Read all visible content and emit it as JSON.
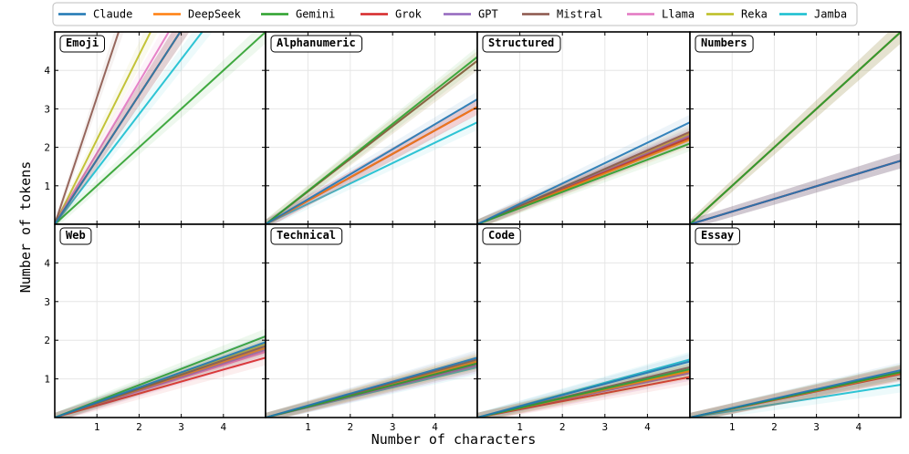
{
  "chart_data": {
    "type": "line",
    "xlabel": "Number of characters",
    "ylabel": "Number of tokens",
    "x_ticks": [
      1,
      2,
      3,
      4
    ],
    "y_ticks": [
      1,
      2,
      3,
      4
    ],
    "xlim": [
      0,
      5
    ],
    "ylim": [
      0,
      5
    ],
    "grid": true,
    "legend_position": "top",
    "models": [
      {
        "name": "Claude",
        "color": "#1f77b4"
      },
      {
        "name": "DeepSeek",
        "color": "#ff7f0e"
      },
      {
        "name": "Gemini",
        "color": "#2ca02c"
      },
      {
        "name": "Grok",
        "color": "#d62728"
      },
      {
        "name": "GPT",
        "color": "#9467bd"
      },
      {
        "name": "Mistral",
        "color": "#8c564b"
      },
      {
        "name": "Llama",
        "color": "#e377c2"
      },
      {
        "name": "Reka",
        "color": "#bcbd22"
      },
      {
        "name": "Jamba",
        "color": "#17becf"
      }
    ],
    "panels": [
      {
        "title": "Emoji",
        "slopes": {
          "Claude": 1.68,
          "DeepSeek": 1.68,
          "Gemini": 1.0,
          "Grok": 1.68,
          "GPT": 1.68,
          "Mistral": 3.3,
          "Llama": 1.85,
          "Reka": 2.2,
          "Jamba": 1.43
        }
      },
      {
        "title": "Alphanumeric",
        "slopes": {
          "Claude": 0.65,
          "DeepSeek": 0.61,
          "Gemini": 0.87,
          "Grok": 0.61,
          "GPT": 0.61,
          "Mistral": 0.85,
          "Llama": 0.61,
          "Reka": 0.85,
          "Jamba": 0.53
        }
      },
      {
        "title": "Structured",
        "slopes": {
          "Claude": 0.53,
          "DeepSeek": 0.44,
          "Gemini": 0.42,
          "Grok": 0.45,
          "GPT": 0.46,
          "Mistral": 0.48,
          "Llama": 0.46,
          "Reka": 0.47,
          "Jamba": 0.45
        }
      },
      {
        "title": "Numbers",
        "slopes": {
          "Claude": 0.33,
          "DeepSeek": 1.0,
          "Gemini": 1.0,
          "Grok": 0.33,
          "GPT": 0.33,
          "Mistral": 1.0,
          "Llama": 0.33,
          "Reka": 0.33,
          "Jamba": 0.33
        }
      },
      {
        "title": "Web",
        "slopes": {
          "Claude": 0.39,
          "DeepSeek": 0.36,
          "Gemini": 0.42,
          "Grok": 0.31,
          "GPT": 0.35,
          "Mistral": 0.37,
          "Llama": 0.34,
          "Reka": 0.38,
          "Jamba": 0.36
        }
      },
      {
        "title": "Technical",
        "slopes": {
          "Claude": 0.31,
          "DeepSeek": 0.29,
          "Gemini": 0.28,
          "Grok": 0.28,
          "GPT": 0.27,
          "Mistral": 0.3,
          "Llama": 0.27,
          "Reka": 0.29,
          "Jamba": 0.26
        }
      },
      {
        "title": "Code",
        "slopes": {
          "Claude": 0.29,
          "DeepSeek": 0.24,
          "Gemini": 0.25,
          "Grok": 0.21,
          "GPT": 0.23,
          "Mistral": 0.26,
          "Llama": 0.23,
          "Reka": 0.24,
          "Jamba": 0.3
        }
      },
      {
        "title": "Essay",
        "slopes": {
          "Claude": 0.245,
          "DeepSeek": 0.23,
          "Gemini": 0.235,
          "Grok": 0.225,
          "GPT": 0.23,
          "Mistral": 0.235,
          "Llama": 0.23,
          "Reka": 0.235,
          "Jamba": 0.17
        }
      }
    ]
  }
}
